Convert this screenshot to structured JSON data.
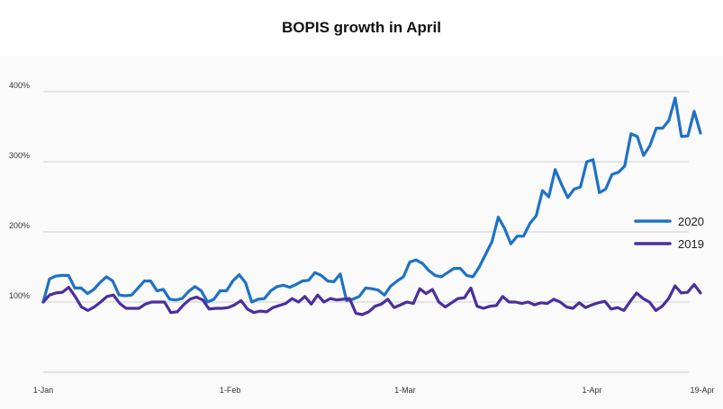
{
  "chart_data": {
    "type": "line",
    "title": "BOPIS growth in April",
    "xlabel": "",
    "ylabel": "",
    "x_ticks": [
      "1-Jan",
      "1-Feb",
      "1-Mar",
      "1-Apr",
      "19-Apr"
    ],
    "x_range": [
      "2020-01-01",
      "2020-04-19"
    ],
    "y_ticks": [
      "100%",
      "200%",
      "300%",
      "400%"
    ],
    "ylim": [
      0,
      420
    ],
    "grid": "horizontal",
    "legend_position": "right",
    "series": [
      {
        "name": "2020",
        "color": "#1f72c4",
        "values": [
          100,
          133,
          137,
          138,
          138,
          120,
          120,
          112,
          118,
          128,
          136,
          130,
          110,
          109,
          110,
          120,
          130,
          130,
          116,
          118,
          104,
          103,
          105,
          115,
          122,
          116,
          100,
          104,
          116,
          116,
          130,
          139,
          128,
          100,
          104,
          105,
          116,
          122,
          124,
          121,
          125,
          130,
          131,
          142,
          138,
          130,
          129,
          140,
          102,
          104,
          108,
          120,
          119,
          117,
          110,
          123,
          130,
          136,
          157,
          160,
          155,
          145,
          138,
          136,
          142,
          148,
          148,
          138,
          136,
          150,
          168,
          186,
          221,
          205,
          183,
          194,
          194,
          212,
          223,
          259,
          250,
          289,
          268,
          249,
          261,
          264,
          300,
          303,
          256,
          261,
          282,
          285,
          294,
          340,
          336,
          309,
          323,
          348,
          348,
          359,
          391,
          336,
          337,
          372,
          341
        ]
      },
      {
        "name": "2019",
        "color": "#4b2e9e",
        "values": [
          100,
          110,
          113,
          114,
          121,
          108,
          93,
          88,
          93,
          100,
          108,
          110,
          98,
          91,
          91,
          91,
          97,
          100,
          100,
          100,
          85,
          86,
          96,
          104,
          107,
          103,
          90,
          91,
          91,
          92,
          96,
          102,
          90,
          85,
          87,
          86,
          92,
          95,
          98,
          105,
          100,
          108,
          97,
          110,
          100,
          105,
          103,
          104,
          105,
          84,
          82,
          86,
          94,
          97,
          104,
          92,
          96,
          100,
          98,
          119,
          112,
          118,
          100,
          93,
          99,
          105,
          106,
          120,
          94,
          91,
          94,
          95,
          108,
          100,
          100,
          98,
          100,
          96,
          99,
          98,
          104,
          100,
          93,
          91,
          99,
          92,
          96,
          99,
          101,
          90,
          92,
          88,
          101,
          113,
          105,
          100,
          88,
          94,
          105,
          123,
          113,
          114,
          125,
          113
        ]
      }
    ]
  }
}
